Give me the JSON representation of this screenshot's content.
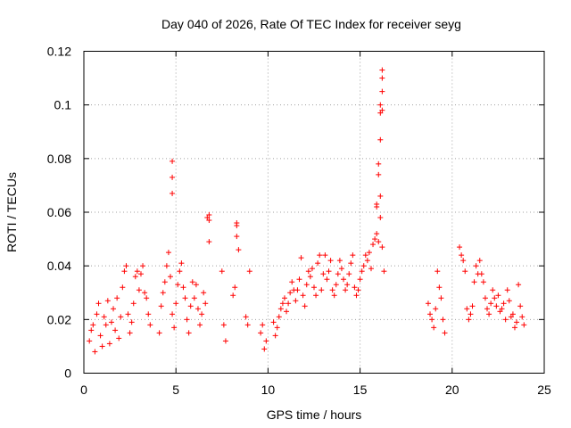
{
  "chart_data": {
    "type": "scatter",
    "title": "Day 040 of 2026, Rate Of TEC Index for receiver seyg",
    "xlabel": "GPS time / hours",
    "ylabel": "ROTI / TECUs",
    "xlim": [
      0,
      25
    ],
    "ylim": [
      0,
      0.12
    ],
    "xticks": [
      0,
      5,
      10,
      15,
      20,
      25
    ],
    "yticks": [
      0,
      0.02,
      0.04,
      0.06,
      0.08,
      0.1,
      0.12
    ],
    "xtick_labels": [
      "0",
      "5",
      "10",
      "15",
      "20",
      "25"
    ],
    "ytick_labels": [
      "0",
      "0.02",
      "0.04",
      "0.06",
      "0.08",
      "0.1",
      "0.12"
    ],
    "grid": true,
    "marker": "+",
    "color": "#ff0000",
    "series": [
      {
        "name": "ROTI",
        "x": [
          0.3,
          0.4,
          0.5,
          0.6,
          0.7,
          0.8,
          0.9,
          1.0,
          1.1,
          1.2,
          1.3,
          1.4,
          1.5,
          1.6,
          1.7,
          1.8,
          1.9,
          2.0,
          2.1,
          2.2,
          2.3,
          2.4,
          2.5,
          2.6,
          2.7,
          2.8,
          2.9,
          3.0,
          3.1,
          3.2,
          3.3,
          3.4,
          3.5,
          3.6,
          4.1,
          4.2,
          4.3,
          4.4,
          4.5,
          4.6,
          4.7,
          4.8,
          4.9,
          5.0,
          5.1,
          5.2,
          5.3,
          5.4,
          5.5,
          5.6,
          5.7,
          5.8,
          5.9,
          6.0,
          6.1,
          6.2,
          6.3,
          6.4,
          6.5,
          6.6,
          6.7,
          6.8,
          7.5,
          7.6,
          7.7,
          8.1,
          8.2,
          8.3,
          8.4,
          8.8,
          8.9,
          9.0,
          9.6,
          9.7,
          9.8,
          9.9,
          10.3,
          10.4,
          10.5,
          10.6,
          10.7,
          10.8,
          10.9,
          11.0,
          11.1,
          11.2,
          11.3,
          11.4,
          11.5,
          11.6,
          11.7,
          11.8,
          11.9,
          12.0,
          12.1,
          12.2,
          12.3,
          12.4,
          12.5,
          12.6,
          12.7,
          12.8,
          12.9,
          13.0,
          13.1,
          13.2,
          13.3,
          13.4,
          13.5,
          13.6,
          13.7,
          13.8,
          13.9,
          14.0,
          14.1,
          14.2,
          14.3,
          14.4,
          14.5,
          14.6,
          14.7,
          14.8,
          14.9,
          15.0,
          15.1,
          15.2,
          15.3,
          15.4,
          15.5,
          15.6,
          15.7,
          15.8,
          15.9,
          16.0,
          16.1,
          16.2,
          16.3,
          18.7,
          18.8,
          18.9,
          19.0,
          19.1,
          19.2,
          19.3,
          19.4,
          19.5,
          19.6,
          20.4,
          20.5,
          20.6,
          20.7,
          20.8,
          20.9,
          21.0,
          21.1,
          21.2,
          21.3,
          21.4,
          21.5,
          21.6,
          21.7,
          21.8,
          21.9,
          22.0,
          22.1,
          22.2,
          22.3,
          22.4,
          22.5,
          22.6,
          22.7,
          22.8,
          22.9,
          23.0,
          23.1,
          23.2,
          23.3,
          23.4,
          23.5,
          23.6,
          23.7,
          23.8,
          23.9,
          4.8,
          4.8,
          4.8,
          6.8,
          6.8,
          8.3,
          8.3,
          16.0,
          16.1,
          16.1,
          16.1,
          16.2,
          16.2,
          16.2,
          16.1,
          16.2,
          15.9,
          15.9,
          16.0
        ],
        "y": [
          0.012,
          0.016,
          0.018,
          0.008,
          0.022,
          0.026,
          0.014,
          0.01,
          0.021,
          0.018,
          0.027,
          0.011,
          0.019,
          0.024,
          0.016,
          0.028,
          0.013,
          0.021,
          0.032,
          0.038,
          0.04,
          0.022,
          0.015,
          0.019,
          0.026,
          0.036,
          0.038,
          0.031,
          0.037,
          0.04,
          0.03,
          0.028,
          0.022,
          0.018,
          0.015,
          0.025,
          0.03,
          0.034,
          0.04,
          0.045,
          0.036,
          0.022,
          0.017,
          0.026,
          0.033,
          0.038,
          0.041,
          0.032,
          0.028,
          0.02,
          0.015,
          0.025,
          0.034,
          0.028,
          0.033,
          0.024,
          0.018,
          0.022,
          0.03,
          0.026,
          0.058,
          0.049,
          0.038,
          0.018,
          0.012,
          0.029,
          0.032,
          0.055,
          0.046,
          0.021,
          0.018,
          0.038,
          0.015,
          0.018,
          0.009,
          0.012,
          0.019,
          0.014,
          0.017,
          0.021,
          0.024,
          0.026,
          0.028,
          0.023,
          0.026,
          0.03,
          0.034,
          0.031,
          0.027,
          0.031,
          0.035,
          0.043,
          0.029,
          0.025,
          0.033,
          0.038,
          0.036,
          0.039,
          0.032,
          0.029,
          0.041,
          0.044,
          0.031,
          0.037,
          0.044,
          0.035,
          0.038,
          0.042,
          0.031,
          0.029,
          0.033,
          0.037,
          0.042,
          0.039,
          0.035,
          0.031,
          0.033,
          0.037,
          0.041,
          0.044,
          0.032,
          0.029,
          0.031,
          0.035,
          0.038,
          0.04,
          0.044,
          0.042,
          0.045,
          0.039,
          0.048,
          0.05,
          0.052,
          0.049,
          0.058,
          0.047,
          0.038,
          0.026,
          0.022,
          0.02,
          0.017,
          0.024,
          0.038,
          0.032,
          0.028,
          0.02,
          0.015,
          0.047,
          0.044,
          0.042,
          0.038,
          0.024,
          0.02,
          0.022,
          0.025,
          0.034,
          0.04,
          0.037,
          0.042,
          0.037,
          0.034,
          0.028,
          0.024,
          0.022,
          0.026,
          0.031,
          0.028,
          0.025,
          0.029,
          0.023,
          0.024,
          0.026,
          0.02,
          0.031,
          0.027,
          0.021,
          0.022,
          0.017,
          0.019,
          0.033,
          0.025,
          0.021,
          0.018,
          0.067,
          0.073,
          0.079,
          0.057,
          0.059,
          0.051,
          0.056,
          0.078,
          0.087,
          0.097,
          0.1,
          0.105,
          0.11,
          0.113,
          0.066,
          0.098,
          0.063,
          0.062,
          0.074
        ]
      }
    ]
  }
}
